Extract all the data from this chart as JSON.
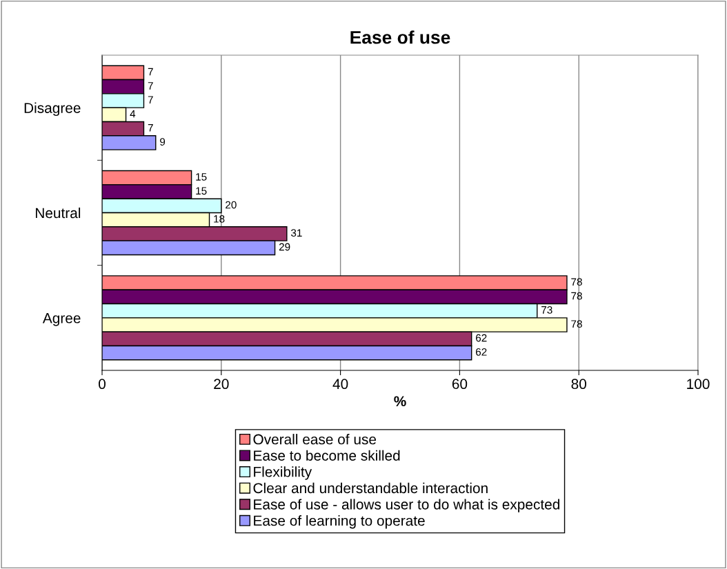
{
  "chart_data": {
    "type": "bar",
    "orientation": "horizontal",
    "title": "Ease of use",
    "xlabel": "%",
    "categories": [
      "Disagree",
      "Neutral",
      "Agree"
    ],
    "series": [
      {
        "name": "Overall ease of use",
        "color": "#ff8080",
        "values": [
          7,
          15,
          78
        ]
      },
      {
        "name": "Ease to become skilled",
        "color": "#660066",
        "values": [
          7,
          15,
          78
        ]
      },
      {
        "name": "Flexibility",
        "color": "#ccffff",
        "values": [
          7,
          20,
          73
        ]
      },
      {
        "name": "Clear and understandable interaction",
        "color": "#ffffcc",
        "values": [
          4,
          18,
          78
        ]
      },
      {
        "name": "Ease of use - allows user to do what is expected",
        "color": "#993366",
        "values": [
          7,
          31,
          62
        ]
      },
      {
        "name": "Ease of learning to operate",
        "color": "#9999ff",
        "values": [
          9,
          29,
          62
        ]
      }
    ],
    "xlim": [
      0,
      100
    ],
    "xticks": [
      0,
      20,
      40,
      60,
      80,
      100
    ],
    "grid": "x",
    "legend": "bottom",
    "data_labels": true
  }
}
